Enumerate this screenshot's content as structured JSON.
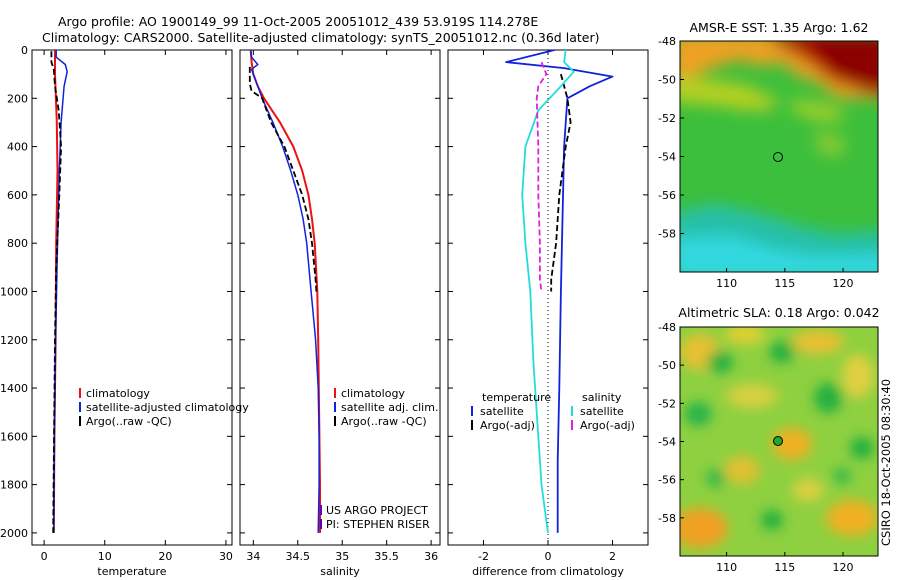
{
  "header": {
    "title_line1": "Argo profile: AO 1900149_99 11-Oct-2005 20051012_439 53.919S 114.278E",
    "title_line2": "Climatology: CARS2000. Satellite-adjusted climatology: synTS_20051012.nc (0.36d later)"
  },
  "side_label": "CSIRO 18-Oct-2005 08:30:40",
  "colors": {
    "climatology": "#ee1111",
    "satellite": "#1122dd",
    "argo": "#000000",
    "temperature_diff": "#1122dd",
    "salinity_diff": "#22dddd",
    "argo_salinity_diff": "#dd22dd",
    "project_mark": "#6600aa"
  },
  "chart_data": [
    {
      "id": "temperature",
      "type": "line",
      "xlabel": "temperature",
      "ylabel": "",
      "xlim": [
        -2,
        31
      ],
      "ylim": [
        2050,
        0
      ],
      "y_reversed": true,
      "xticks": [
        0,
        10,
        20,
        30
      ],
      "yticks": [
        0,
        200,
        400,
        600,
        800,
        1000,
        1200,
        1400,
        1600,
        1800,
        2000
      ],
      "grid": false,
      "legend": {
        "placement": "bottom-right",
        "entries": [
          {
            "label": "climatology",
            "color": "#ee1111"
          },
          {
            "label": "satellite-adjusted climatology",
            "color": "#1122dd"
          },
          {
            "label": "Argo(..raw -QC)",
            "color": "#000000"
          }
        ]
      },
      "series": [
        {
          "name": "climatology",
          "color": "#ee1111",
          "dashed": false,
          "width": 2,
          "points": [
            [
              1.8,
              0
            ],
            [
              1.8,
              100
            ],
            [
              2.1,
              300
            ],
            [
              2.2,
              500
            ],
            [
              2.0,
              800
            ],
            [
              1.9,
              1200
            ],
            [
              1.7,
              1600
            ],
            [
              1.6,
              2000
            ]
          ]
        },
        {
          "name": "satellite-adjusted climatology",
          "color": "#1122dd",
          "dashed": false,
          "width": 1.5,
          "points": [
            [
              2.0,
              0
            ],
            [
              2.0,
              30
            ],
            [
              3.5,
              60
            ],
            [
              3.8,
              90
            ],
            [
              3.3,
              150
            ],
            [
              2.8,
              300
            ],
            [
              2.5,
              500
            ],
            [
              2.2,
              800
            ],
            [
              1.9,
              1200
            ],
            [
              1.7,
              1600
            ],
            [
              1.6,
              2000
            ]
          ]
        },
        {
          "name": "Argo(..raw -QC)",
          "color": "#000000",
          "dashed": true,
          "width": 1.8,
          "points": [
            [
              1.2,
              5
            ],
            [
              1.2,
              50
            ],
            [
              1.6,
              80
            ],
            [
              1.8,
              150
            ],
            [
              2.4,
              250
            ],
            [
              2.8,
              400
            ],
            [
              2.5,
              600
            ],
            [
              2.0,
              900
            ],
            [
              1.8,
              1200
            ],
            [
              1.6,
              1700
            ],
            [
              1.5,
              2000
            ]
          ]
        }
      ]
    },
    {
      "id": "salinity",
      "type": "line",
      "xlabel": "salinity",
      "ylabel": "",
      "xlim": [
        33.85,
        36.1
      ],
      "ylim": [
        2050,
        0
      ],
      "y_reversed": true,
      "xticks": [
        34,
        34.5,
        35,
        35.5,
        36
      ],
      "xticklabels": [
        "34",
        "34.5",
        "35",
        "35.5",
        "36"
      ],
      "yticks": [
        0,
        200,
        400,
        600,
        800,
        1000,
        1200,
        1400,
        1600,
        1800,
        2000
      ],
      "grid": false,
      "legend": {
        "placement": "bottom-right",
        "entries": [
          {
            "label": "climatology",
            "color": "#ee1111"
          },
          {
            "label": "satellite adj. clim.",
            "color": "#1122dd"
          },
          {
            "label": "Argo(..raw -QC)",
            "color": "#000000"
          }
        ]
      },
      "annotations": [
        "US ARGO PROJECT",
        "PI: STEPHEN RISER"
      ],
      "series": [
        {
          "name": "climatology",
          "color": "#ee1111",
          "dashed": false,
          "width": 2,
          "points": [
            [
              33.97,
              0
            ],
            [
              33.98,
              50
            ],
            [
              34.0,
              100
            ],
            [
              34.05,
              150
            ],
            [
              34.12,
              200
            ],
            [
              34.3,
              300
            ],
            [
              34.45,
              400
            ],
            [
              34.55,
              500
            ],
            [
              34.62,
              600
            ],
            [
              34.66,
              700
            ],
            [
              34.69,
              800
            ],
            [
              34.72,
              1000
            ],
            [
              34.73,
              1200
            ],
            [
              34.74,
              1500
            ],
            [
              34.75,
              1800
            ],
            [
              34.75,
              2000
            ]
          ]
        },
        {
          "name": "satellite adj. clim.",
          "color": "#1122dd",
          "dashed": false,
          "width": 1.5,
          "points": [
            [
              33.97,
              0
            ],
            [
              33.98,
              30
            ],
            [
              34.05,
              60
            ],
            [
              33.98,
              80
            ],
            [
              34.0,
              100
            ],
            [
              34.05,
              150
            ],
            [
              34.1,
              200
            ],
            [
              34.22,
              300
            ],
            [
              34.33,
              400
            ],
            [
              34.42,
              500
            ],
            [
              34.5,
              600
            ],
            [
              34.56,
              700
            ],
            [
              34.6,
              800
            ],
            [
              34.65,
              1000
            ],
            [
              34.7,
              1200
            ],
            [
              34.73,
              1400
            ],
            [
              34.74,
              1600
            ],
            [
              34.74,
              1800
            ],
            [
              34.73,
              2000
            ]
          ]
        },
        {
          "name": "Argo(..raw -QC)",
          "color": "#000000",
          "dashed": true,
          "width": 1.8,
          "points": [
            [
              33.96,
              70
            ],
            [
              33.96,
              140
            ],
            [
              33.98,
              170
            ],
            [
              34.1,
              200
            ],
            [
              34.2,
              300
            ],
            [
              34.35,
              400
            ],
            [
              34.45,
              500
            ],
            [
              34.55,
              600
            ],
            [
              34.62,
              700
            ],
            [
              34.66,
              800
            ],
            [
              34.7,
              950
            ],
            [
              34.71,
              1000
            ]
          ]
        }
      ]
    },
    {
      "id": "difference",
      "type": "line",
      "xlabel": "difference from climatology",
      "ylabel": "",
      "xlim": [
        -3.1,
        3.1
      ],
      "ylim": [
        2050,
        0
      ],
      "y_reversed": true,
      "xticks": [
        -2,
        0,
        2
      ],
      "yticks": [
        0,
        200,
        400,
        600,
        800,
        1000,
        1200,
        1400,
        1600,
        1800,
        2000
      ],
      "grid": false,
      "zero_line": true,
      "legend": {
        "placement": "bottom-center",
        "columns": [
          {
            "heading": "temperature",
            "entries": [
              {
                "label": "satellite",
                "color": "#1122dd"
              },
              {
                "label": "Argo(-adj)",
                "color": "#000000"
              }
            ]
          },
          {
            "heading": "salinity",
            "entries": [
              {
                "label": "satellite",
                "color": "#22dddd"
              },
              {
                "label": "Argo(-adj)",
                "color": "#dd22dd"
              }
            ]
          }
        ]
      },
      "series": [
        {
          "name": "temperature satellite",
          "color": "#1122dd",
          "dashed": false,
          "width": 1.8,
          "points": [
            [
              0.2,
              0
            ],
            [
              -1.3,
              50
            ],
            [
              0.5,
              75
            ],
            [
              2.0,
              110
            ],
            [
              1.3,
              150
            ],
            [
              0.6,
              200
            ],
            [
              0.5,
              400
            ],
            [
              0.45,
              700
            ],
            [
              0.4,
              1000
            ],
            [
              0.35,
              1400
            ],
            [
              0.3,
              1700
            ],
            [
              0.3,
              2000
            ]
          ]
        },
        {
          "name": "temperature Argo(-adj)",
          "color": "#000000",
          "dashed": true,
          "width": 1.8,
          "points": [
            [
              0.4,
              100
            ],
            [
              0.6,
              200
            ],
            [
              0.7,
              300
            ],
            [
              0.55,
              400
            ],
            [
              0.35,
              600
            ],
            [
              0.25,
              800
            ],
            [
              0.1,
              950
            ],
            [
              0.1,
              1000
            ]
          ]
        },
        {
          "name": "salinity satellite",
          "color": "#22dddd",
          "dashed": false,
          "width": 1.8,
          "points": [
            [
              0.55,
              0
            ],
            [
              0.5,
              50
            ],
            [
              0.8,
              90
            ],
            [
              0.4,
              150
            ],
            [
              -0.3,
              250
            ],
            [
              -0.7,
              400
            ],
            [
              -0.8,
              600
            ],
            [
              -0.7,
              800
            ],
            [
              -0.55,
              1000
            ],
            [
              -0.45,
              1300
            ],
            [
              -0.3,
              1600
            ],
            [
              -0.2,
              1800
            ],
            [
              0.0,
              2000
            ]
          ]
        },
        {
          "name": "salinity Argo(-adj)",
          "color": "#dd22dd",
          "dashed": true,
          "width": 1.8,
          "points": [
            [
              -0.2,
              50
            ],
            [
              -0.05,
              100
            ],
            [
              -0.3,
              150
            ],
            [
              -0.35,
              200
            ],
            [
              -0.3,
              400
            ],
            [
              -0.3,
              600
            ],
            [
              -0.25,
              800
            ],
            [
              -0.25,
              950
            ],
            [
              -0.2,
              1000
            ]
          ]
        }
      ]
    },
    {
      "id": "amsre_sst",
      "type": "heatmap",
      "title": "AMSR-E SST: 1.35 Argo: 1.62",
      "xlim": [
        106,
        123
      ],
      "ylim": [
        -60,
        -48
      ],
      "xticks": [
        110,
        115,
        120
      ],
      "yticks": [
        -48,
        -50,
        -52,
        -54,
        -56,
        -58
      ],
      "argo_position": [
        114.278,
        -53.919
      ]
    },
    {
      "id": "altimetric_sla",
      "type": "heatmap",
      "title": "Altimetric SLA: 0.18 Argo: 0.042",
      "xlim": [
        106,
        123
      ],
      "ylim": [
        -60,
        -48
      ],
      "xticks": [
        110,
        115,
        120
      ],
      "yticks": [
        -48,
        -50,
        -52,
        -54,
        -56,
        -58
      ],
      "argo_position": [
        114.278,
        -53.919
      ]
    }
  ]
}
